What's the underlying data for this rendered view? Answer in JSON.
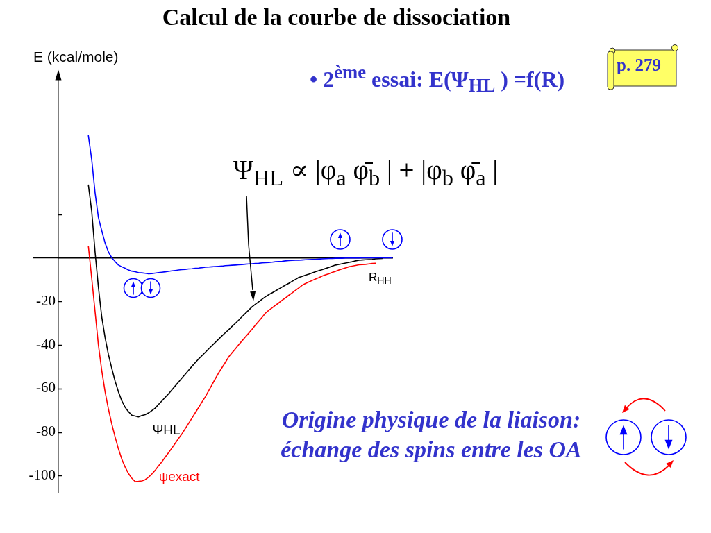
{
  "chart_data": {
    "type": "line",
    "title": "Calcul de la courbe de dissociation",
    "subtitle": "• 2$^{ème}$ essai: E(Ψ$_{HL}$ ) =f(R)",
    "xlabel": "R$_{HH}$",
    "ylabel": "E (kcal/mole)",
    "categories": [
      null,
      null,
      null,
      null,
      null,
      null,
      null,
      null,
      null,
      null,
      null,
      null,
      null,
      null,
      null,
      null,
      null,
      null,
      null,
      null,
      null,
      null,
      null,
      null,
      null,
      null,
      null,
      null,
      null,
      null,
      null,
      null,
      null,
      null,
      null,
      null,
      null,
      null,
      null,
      null,
      null,
      null,
      null,
      null,
      null,
      null,
      null,
      null,
      null,
      null,
      null,
      null,
      null,
      null,
      null,
      null,
      null,
      null,
      null,
      null,
      null,
      null,
      null,
      null,
      null,
      null,
      null,
      null,
      null,
      null,
      null,
      null,
      null,
      null,
      null,
      null,
      null,
      null,
      null,
      null,
      null,
      null,
      null,
      null,
      null,
      null,
      null,
      null,
      null,
      null,
      null,
      null,
      null,
      null,
      null,
      null,
      null,
      null,
      null,
      null,
      null
    ],
    "series": [
      {
        "color": "#0000ff",
        "values": [
          null,
          null,
          null,
          null,
          null,
          null,
          null,
          null,
          null,
          56,
          45.0,
          29.9,
          18.5,
          12.4,
          6.8,
          2.7,
          0.0,
          -1.7,
          -3.3,
          -4.1,
          -4.8,
          -5.6,
          -6.1,
          -6.4,
          -6.8,
          -6.9,
          -7.1,
          -7.3,
          -7.2,
          -7.0,
          -6.8,
          -6.6,
          -6.4,
          -6.2,
          -6.0,
          -5.8,
          -5.6,
          -5.4,
          -5.3,
          -5.1,
          -5.0,
          -4.8,
          -4.7,
          -4.5,
          -4.3,
          -4.2,
          -4.1,
          -4.0,
          -3.9,
          -3.8,
          -3.6,
          -3.5,
          -3.4,
          -3.3,
          -3.2,
          -3.1,
          -2.9,
          -2.8,
          -2.7,
          -2.6,
          -2.5,
          -2.3,
          -2.2,
          -2.1,
          -2.0,
          -1.8,
          -1.7,
          -1.6,
          -1.4,
          -1.3,
          -1.2,
          -1.1,
          -1.1,
          -1.0,
          -0.9,
          -0.8,
          -0.7,
          -0.7,
          -0.6,
          -0.5,
          -0.4,
          -0.3,
          -0.3,
          -0.2,
          -0.2,
          -0.2,
          -0.1,
          -0.1,
          -0.1,
          -0.1,
          -0.1,
          0,
          0,
          0,
          0,
          0,
          0,
          0,
          0,
          0,
          0
        ]
      },
      {
        "name": "ΨHL",
        "color": "#000000",
        "values": [
          null,
          null,
          null,
          null,
          null,
          null,
          null,
          null,
          null,
          33.4,
          21.3,
          2.7,
          -13.5,
          -27.1,
          -36.6,
          -44.4,
          -50.7,
          -56.6,
          -61.5,
          -65.6,
          -68.6,
          -70.6,
          -72.2,
          -72.6,
          -73.0,
          -72.4,
          -72.0,
          -71.2,
          -70.1,
          -69.0,
          -67.3,
          -65.7,
          -64.0,
          -62.4,
          -60.6,
          -58.8,
          -57.0,
          -55.2,
          -53.4,
          -51.6,
          -49.8,
          -48.1,
          -46.4,
          -44.9,
          -43.4,
          -41.8,
          -40.3,
          -38.8,
          -37.3,
          -35.8,
          -34.4,
          -33.0,
          -31.5,
          -30.1,
          -28.6,
          -27.0,
          -25.5,
          -24.0,
          -22.5,
          -21.3,
          -20.2,
          -19.0,
          -17.9,
          -16.9,
          -16.1,
          -15.2,
          -14.3,
          -13.4,
          -12.5,
          -11.7,
          -10.8,
          -9.9,
          -9.0,
          -8.5,
          -8.0,
          -7.5,
          -6.9,
          -6.4,
          -5.9,
          -5.4,
          -4.9,
          -4.4,
          -3.8,
          -3.3,
          -3.0,
          -2.7,
          -2.4,
          -2.1,
          -1.8,
          -1.4,
          -1.1,
          -1.0,
          -0.9,
          -0.8,
          -0.7,
          -0.5,
          -0.4,
          -0.3,
          null,
          null,
          null
        ]
      },
      {
        "name": "ψexact",
        "color": "#ff0000",
        "values": [
          null,
          null,
          null,
          null,
          null,
          null,
          null,
          null,
          null,
          5.3,
          -9.4,
          -24.6,
          -40.0,
          -51.7,
          -61.4,
          -69.4,
          -76.2,
          -82.2,
          -87.7,
          -92.4,
          -96.0,
          -99.0,
          -101.1,
          -102.7,
          -102.6,
          -102.4,
          -101.8,
          -100.7,
          -99.2,
          -97.5,
          -95.5,
          -93.6,
          -91.5,
          -89.4,
          -87.3,
          -85.1,
          -82.9,
          -80.8,
          -78.4,
          -76.0,
          -73.6,
          -71.1,
          -68.7,
          -66.2,
          -63.8,
          -61.0,
          -58.3,
          -55.5,
          -52.8,
          -50.4,
          -48.0,
          -45.5,
          -43.6,
          -41.8,
          -39.9,
          -38.1,
          -36.3,
          -34.6,
          -32.8,
          -30.9,
          -29.1,
          -27.3,
          -25.4,
          -24.1,
          -23.0,
          -21.8,
          -20.7,
          -19.5,
          -18.4,
          -17.2,
          -16.1,
          -14.9,
          -13.8,
          -12.6,
          -11.8,
          -11.1,
          -10.4,
          -9.7,
          -9.1,
          -8.4,
          -7.8,
          -7.3,
          -6.7,
          -6.2,
          -5.6,
          -5.1,
          -4.6,
          -4.1,
          -3.8,
          -3.5,
          -3.2,
          -3.1,
          -3.0,
          -2.8,
          -2.6,
          -2.5,
          null,
          null,
          null,
          null,
          null
        ]
      }
    ],
    "ylim": [
      -108,
      85
    ],
    "yticks": [
      -100,
      -80,
      -60,
      -40,
      -20,
      {
        "value": 20,
        "label": null
      }
    ],
    "tick_labels": "y",
    "marker": "none",
    "line_style": "solid",
    "annotations": [
      "Ψ$_{HL}$ ∝ |φ$_{a}$ φ̄$_{b}$ | + |φ$_{b}$ φ̄$_{a}$ |",
      "p. 279",
      "Origine physique de la liaison: échange des spins entre les OA"
    ]
  }
}
